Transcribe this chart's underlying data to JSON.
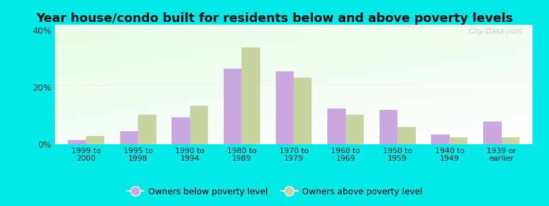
{
  "title": "Year house/condo built for residents below and above poverty levels",
  "categories": [
    "1999 to\n2000",
    "1995 to\n1998",
    "1990 to\n1994",
    "1980 to\n1989",
    "1970 to\n1979",
    "1960 to\n1969",
    "1950 to\n1959",
    "1940 to\n1949",
    "1939 or\nearlier"
  ],
  "below_poverty": [
    1.5,
    4.5,
    9.5,
    26.5,
    25.5,
    12.5,
    12.0,
    3.5,
    8.0
  ],
  "above_poverty": [
    3.0,
    10.5,
    13.5,
    34.0,
    23.5,
    10.5,
    6.0,
    2.5,
    2.5
  ],
  "below_color": "#c9a8e0",
  "above_color": "#c8d4a0",
  "ylim": [
    0,
    42
  ],
  "yticks": [
    0,
    20,
    40
  ],
  "ytick_labels": [
    "0%",
    "20%",
    "40%"
  ],
  "outer_bg": "#00e8e8",
  "legend_below": "Owners below poverty level",
  "legend_above": "Owners above poverty level",
  "title_fontsize": 13,
  "bar_width": 0.35,
  "watermark": "City-Data.com"
}
